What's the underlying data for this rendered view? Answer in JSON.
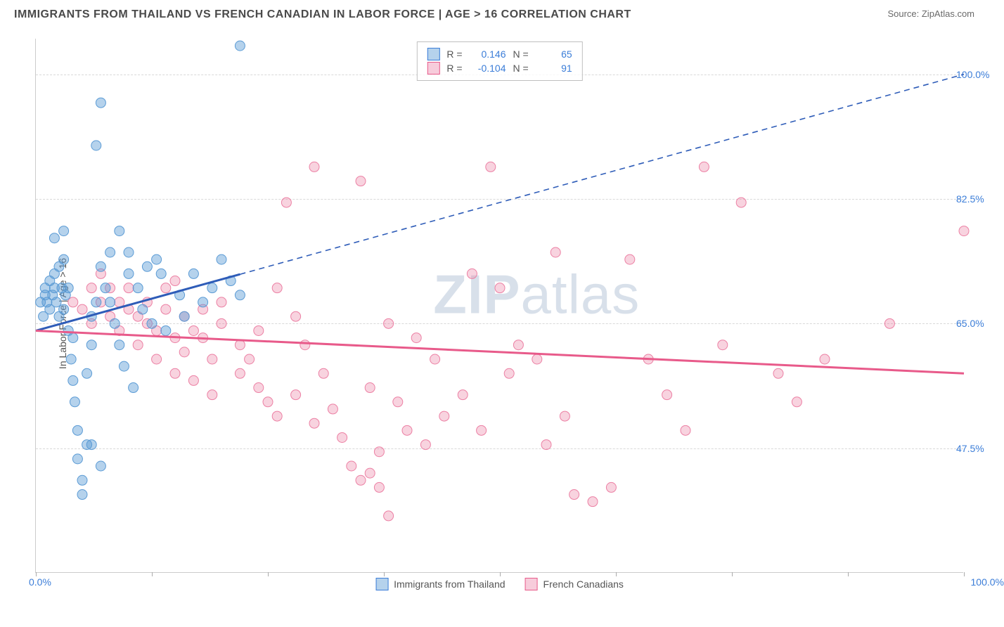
{
  "title": "IMMIGRANTS FROM THAILAND VS FRENCH CANADIAN IN LABOR FORCE | AGE > 16 CORRELATION CHART",
  "source": "Source: ZipAtlas.com",
  "watermark_bold": "ZIP",
  "watermark_light": "atlas",
  "y_axis_label": "In Labor Force | Age > 16",
  "axes": {
    "x_min_label": "0.0%",
    "x_max_label": "100.0%",
    "y_format": "percent",
    "xlim": [
      0,
      100
    ],
    "ylim": [
      30,
      105
    ],
    "y_ticks": [
      {
        "value": 47.5,
        "label": "47.5%"
      },
      {
        "value": 65.0,
        "label": "65.0%"
      },
      {
        "value": 82.5,
        "label": "82.5%"
      },
      {
        "value": 100.0,
        "label": "100.0%"
      }
    ],
    "x_tick_positions": [
      0,
      12.5,
      25,
      37.5,
      50,
      62.5,
      75,
      87.5,
      100
    ]
  },
  "colors": {
    "blue_fill": "rgba(91,155,213,0.45)",
    "blue_stroke": "#5b9bd5",
    "blue_trend": "#2e5cb8",
    "pink_fill": "rgba(236,128,164,0.35)",
    "pink_stroke": "#ec80a4",
    "pink_trend": "#e85a8a",
    "grid": "#d8d8d8",
    "text_axis": "#3b7dd8",
    "background": "#ffffff"
  },
  "marker_radius": 7,
  "legend_bottom": {
    "series1": "Immigrants from Thailand",
    "series2": "French Canadians"
  },
  "stats_box": {
    "rows": [
      {
        "swatch": "blue",
        "r_label": "R =",
        "r_value": "0.146",
        "n_label": "N =",
        "n_value": "65"
      },
      {
        "swatch": "pink",
        "r_label": "R =",
        "r_value": "-0.104",
        "n_label": "N =",
        "n_value": "91"
      }
    ]
  },
  "trendlines": {
    "blue": {
      "y_at_x0": 64.0,
      "y_at_x100": 100.0,
      "solid_until_x": 22
    },
    "pink": {
      "y_at_x0": 64.0,
      "y_at_x100": 58.0
    }
  },
  "series": {
    "blue": [
      [
        0.5,
        68
      ],
      [
        0.8,
        66
      ],
      [
        1,
        69
      ],
      [
        1,
        70
      ],
      [
        1.2,
        68
      ],
      [
        1.5,
        67
      ],
      [
        1.5,
        71
      ],
      [
        1.8,
        69
      ],
      [
        2,
        70
      ],
      [
        2,
        72
      ],
      [
        2,
        77
      ],
      [
        2.2,
        68
      ],
      [
        2.5,
        66
      ],
      [
        2.5,
        73
      ],
      [
        2.8,
        70
      ],
      [
        3,
        67
      ],
      [
        3,
        78
      ],
      [
        3,
        74
      ],
      [
        3.2,
        69
      ],
      [
        3.5,
        64
      ],
      [
        3.5,
        70
      ],
      [
        3.8,
        60
      ],
      [
        4,
        63
      ],
      [
        4,
        57
      ],
      [
        4.2,
        54
      ],
      [
        4.5,
        50
      ],
      [
        4.5,
        46
      ],
      [
        5,
        43
      ],
      [
        5,
        41
      ],
      [
        5.5,
        48
      ],
      [
        5.5,
        58
      ],
      [
        6,
        62
      ],
      [
        6,
        66
      ],
      [
        6.5,
        68
      ],
      [
        6.5,
        90
      ],
      [
        7,
        96
      ],
      [
        7,
        73
      ],
      [
        7.5,
        70
      ],
      [
        8,
        68
      ],
      [
        8,
        75
      ],
      [
        8.5,
        65
      ],
      [
        9,
        62
      ],
      [
        9,
        78
      ],
      [
        9.5,
        59
      ],
      [
        10,
        72
      ],
      [
        10,
        75
      ],
      [
        10.5,
        56
      ],
      [
        11,
        70
      ],
      [
        11.5,
        67
      ],
      [
        12,
        73
      ],
      [
        12.5,
        65
      ],
      [
        13,
        74
      ],
      [
        13.5,
        72
      ],
      [
        14,
        64
      ],
      [
        15.5,
        69
      ],
      [
        16,
        66
      ],
      [
        17,
        72
      ],
      [
        18,
        68
      ],
      [
        19,
        70
      ],
      [
        20,
        74
      ],
      [
        21,
        71
      ],
      [
        22,
        104
      ],
      [
        22,
        69
      ],
      [
        6,
        48
      ],
      [
        7,
        45
      ]
    ],
    "pink": [
      [
        4,
        68
      ],
      [
        5,
        67
      ],
      [
        6,
        70
      ],
      [
        6,
        65
      ],
      [
        7,
        72
      ],
      [
        7,
        68
      ],
      [
        8,
        66
      ],
      [
        8,
        70
      ],
      [
        9,
        68
      ],
      [
        9,
        64
      ],
      [
        10,
        67
      ],
      [
        10,
        70
      ],
      [
        11,
        66
      ],
      [
        11,
        62
      ],
      [
        12,
        65
      ],
      [
        12,
        68
      ],
      [
        13,
        64
      ],
      [
        13,
        60
      ],
      [
        14,
        67
      ],
      [
        14,
        70
      ],
      [
        15,
        63
      ],
      [
        15,
        58
      ],
      [
        16,
        66
      ],
      [
        16,
        61
      ],
      [
        17,
        64
      ],
      [
        17,
        57
      ],
      [
        18,
        63
      ],
      [
        18,
        67
      ],
      [
        19,
        60
      ],
      [
        19,
        55
      ],
      [
        20,
        65
      ],
      [
        20,
        68
      ],
      [
        22,
        62
      ],
      [
        22,
        58
      ],
      [
        23,
        60
      ],
      [
        24,
        56
      ],
      [
        24,
        64
      ],
      [
        25,
        54
      ],
      [
        26,
        52
      ],
      [
        26,
        70
      ],
      [
        27,
        82
      ],
      [
        28,
        66
      ],
      [
        28,
        55
      ],
      [
        29,
        62
      ],
      [
        30,
        51
      ],
      [
        30,
        87
      ],
      [
        31,
        58
      ],
      [
        32,
        53
      ],
      [
        33,
        49
      ],
      [
        34,
        45
      ],
      [
        35,
        43
      ],
      [
        35,
        85
      ],
      [
        36,
        56
      ],
      [
        36,
        44
      ],
      [
        37,
        42
      ],
      [
        37,
        47
      ],
      [
        38,
        38
      ],
      [
        38,
        65
      ],
      [
        39,
        54
      ],
      [
        40,
        50
      ],
      [
        41,
        63
      ],
      [
        42,
        48
      ],
      [
        43,
        60
      ],
      [
        44,
        52
      ],
      [
        46,
        55
      ],
      [
        47,
        72
      ],
      [
        48,
        50
      ],
      [
        49,
        87
      ],
      [
        50,
        70
      ],
      [
        51,
        58
      ],
      [
        52,
        62
      ],
      [
        54,
        60
      ],
      [
        55,
        48
      ],
      [
        56,
        75
      ],
      [
        57,
        52
      ],
      [
        58,
        41
      ],
      [
        60,
        40
      ],
      [
        62,
        42
      ],
      [
        64,
        74
      ],
      [
        66,
        60
      ],
      [
        68,
        55
      ],
      [
        70,
        50
      ],
      [
        72,
        87
      ],
      [
        74,
        62
      ],
      [
        76,
        82
      ],
      [
        80,
        58
      ],
      [
        82,
        54
      ],
      [
        85,
        60
      ],
      [
        92,
        65
      ],
      [
        100,
        78
      ],
      [
        15,
        71
      ]
    ]
  }
}
